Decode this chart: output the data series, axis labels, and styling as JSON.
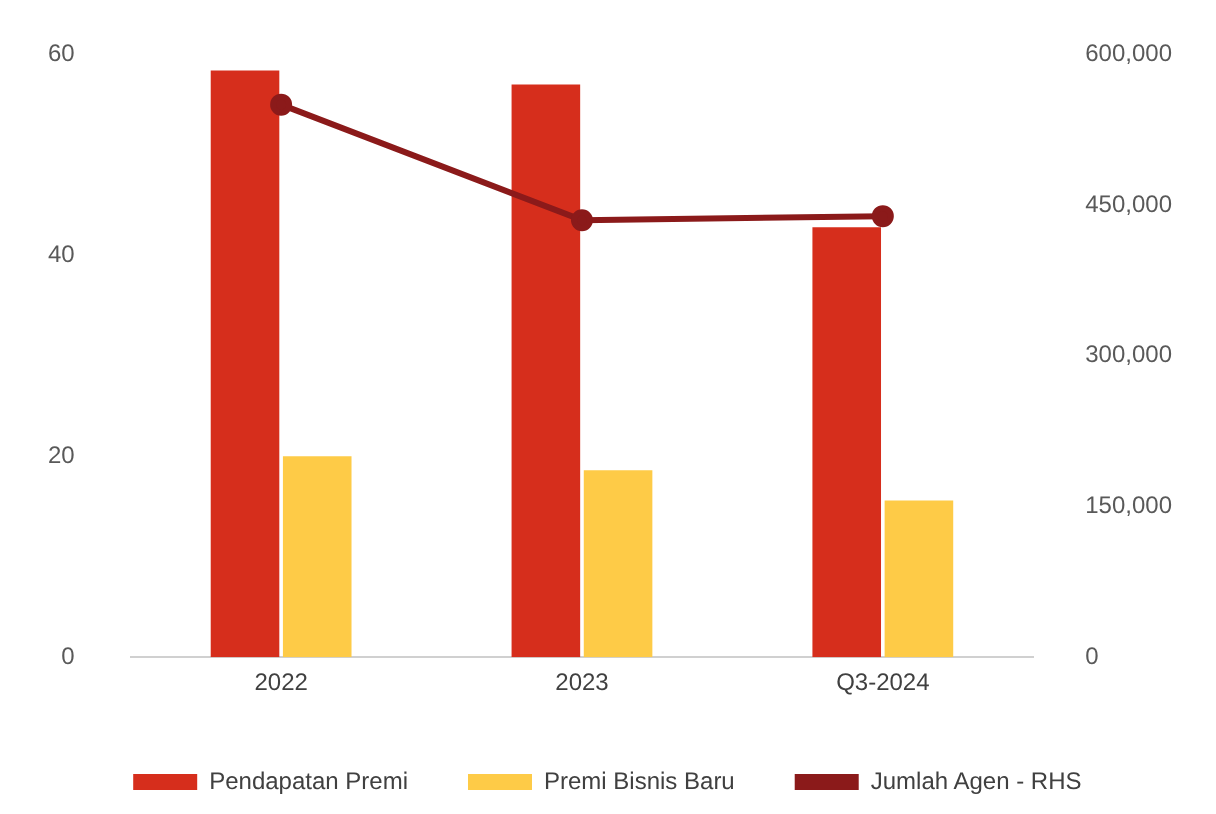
{
  "chart_data": {
    "type": "bar",
    "categories": [
      "2022",
      "2023",
      "Q3-2024"
    ],
    "series": [
      {
        "name": "Pendapatan Premi",
        "color": "#d62e1c",
        "values": [
          58.4,
          57.0,
          42.8
        ]
      },
      {
        "name": "Premi Bisnis Baru",
        "color": "#fecb47",
        "values": [
          20.0,
          18.6,
          15.6
        ]
      },
      {
        "name": "Jumlah Agen - RHS",
        "type": "line",
        "axis": "y2",
        "color": "#8b1a1a",
        "values": [
          550000,
          435000,
          439000
        ]
      }
    ],
    "ylim": [
      0,
      60
    ],
    "yticks": [
      0,
      20,
      40,
      60
    ],
    "y2lim": [
      0,
      600000
    ],
    "y2ticks": [
      {
        "value": 0,
        "label": "0"
      },
      {
        "value": 150000,
        "label": "150,000"
      },
      {
        "value": 300000,
        "label": "300,000"
      },
      {
        "value": 450000,
        "label": "450,000"
      },
      {
        "value": 600000,
        "label": "600,000"
      }
    ],
    "grid": false,
    "legend": "bottom",
    "marker": "circle",
    "line_style": "solid"
  }
}
